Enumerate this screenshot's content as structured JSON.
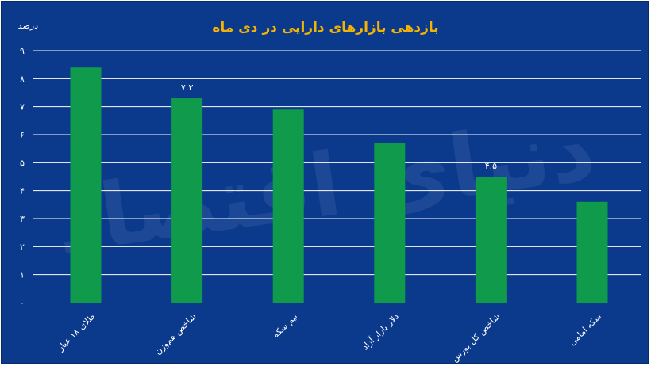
{
  "chart_data": {
    "type": "bar",
    "title": "بازدهی بازارهای دارایی در دی ماه",
    "ylabel": "درصد",
    "xlabel": "",
    "categories": [
      "طلای ۱۸ عیار",
      "شاخص هم‌وزن",
      "نیم سکه",
      "دلار بازار آزاد",
      "شاخص کل بورس",
      "سکه امامی"
    ],
    "values": [
      8.4,
      7.3,
      6.9,
      5.7,
      4.5,
      3.6
    ],
    "data_labels": [
      "",
      "۷.۳",
      "",
      "",
      "۴.۵",
      ""
    ],
    "ylim": [
      0,
      9
    ],
    "yticks": [
      "۰",
      "۱",
      "۲",
      "۳",
      "۴",
      "۵",
      "۶",
      "۷",
      "۸",
      "۹"
    ],
    "grid": true,
    "colors": {
      "background": "#0b3a8c",
      "bar": "#0f9a4c",
      "title": "#f6b400",
      "text": "#ffffff"
    }
  },
  "watermark": "دنیای اقتصاد"
}
